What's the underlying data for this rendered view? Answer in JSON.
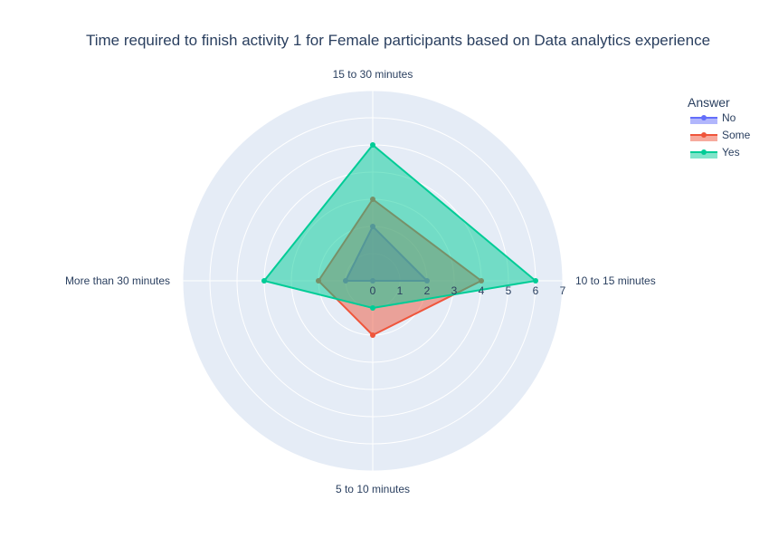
{
  "chart_data": {
    "type": "radar",
    "title": "Time required to finish activity 1 for Female participants based on  Data analytics experience",
    "angular_categories": [
      "10 to 15 minutes",
      "15 to 30 minutes",
      "More than 30 minutes",
      "5 to 10 minutes"
    ],
    "radial_range": [
      0,
      7
    ],
    "radial_ticks": [
      "0",
      "1",
      "2",
      "3",
      "4",
      "5",
      "6",
      "7"
    ],
    "legend_title": "Answer",
    "legend_position": "top-right",
    "series": [
      {
        "name": "No",
        "values": [
          2,
          2,
          1,
          0
        ],
        "color": "#636efa"
      },
      {
        "name": "Some",
        "values": [
          4,
          3,
          2,
          2
        ],
        "color": "#ef553b"
      },
      {
        "name": "Yes",
        "values": [
          6,
          5,
          4,
          1
        ],
        "color": "#00cc96"
      }
    ],
    "background_color": "#e5ecf6",
    "grid": true
  }
}
